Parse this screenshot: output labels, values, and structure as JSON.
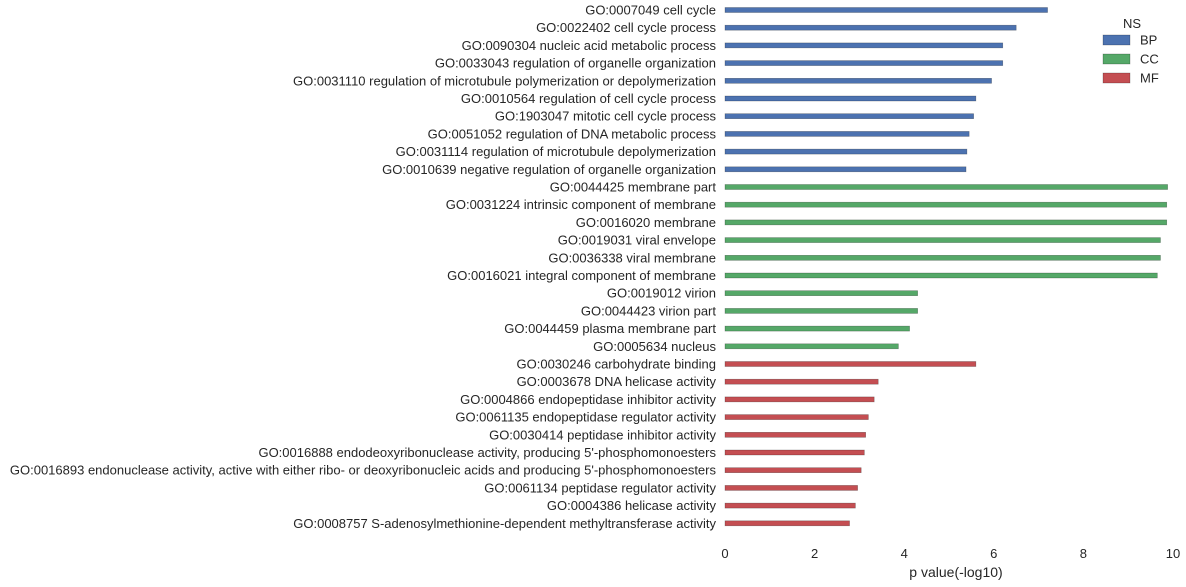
{
  "chart_data": {
    "type": "bar",
    "orientation": "horizontal",
    "xlabel": "p value(-log10)",
    "ylabel": "",
    "xlim": [
      0,
      10
    ],
    "xticks": [
      "0",
      "2",
      "4",
      "6",
      "8",
      "10"
    ],
    "grid": false,
    "legend": {
      "title": "NS",
      "placement": "top-right",
      "entries": [
        {
          "name": "BP",
          "color": "#4c72b0"
        },
        {
          "name": "CC",
          "color": "#55a868"
        },
        {
          "name": "MF",
          "color": "#c44e52"
        }
      ]
    },
    "bars": [
      {
        "label": "GO:0007049 cell cycle",
        "value": 7.2,
        "ns": "BP"
      },
      {
        "label": "GO:0022402 cell cycle process",
        "value": 6.5,
        "ns": "BP"
      },
      {
        "label": "GO:0090304 nucleic acid metabolic process",
        "value": 6.2,
        "ns": "BP"
      },
      {
        "label": "GO:0033043 regulation of organelle organization",
        "value": 6.2,
        "ns": "BP"
      },
      {
        "label": "GO:0031110 regulation of microtubule polymerization or depolymerization",
        "value": 5.95,
        "ns": "BP"
      },
      {
        "label": "GO:0010564 regulation of cell cycle process",
        "value": 5.6,
        "ns": "BP"
      },
      {
        "label": "GO:1903047 mitotic cell cycle process",
        "value": 5.55,
        "ns": "BP"
      },
      {
        "label": "GO:0051052 regulation of DNA metabolic process",
        "value": 5.45,
        "ns": "BP"
      },
      {
        "label": "GO:0031114 regulation of microtubule depolymerization",
        "value": 5.4,
        "ns": "BP"
      },
      {
        "label": "GO:0010639 negative regulation of organelle organization",
        "value": 5.38,
        "ns": "BP"
      },
      {
        "label": "GO:0044425 membrane part",
        "value": 9.88,
        "ns": "CC"
      },
      {
        "label": "GO:0031224 intrinsic component of membrane",
        "value": 9.86,
        "ns": "CC"
      },
      {
        "label": "GO:0016020 membrane",
        "value": 9.86,
        "ns": "CC"
      },
      {
        "label": "GO:0019031 viral envelope",
        "value": 9.72,
        "ns": "CC"
      },
      {
        "label": "GO:0036338 viral membrane",
        "value": 9.72,
        "ns": "CC"
      },
      {
        "label": "GO:0016021 integral component of membrane",
        "value": 9.65,
        "ns": "CC"
      },
      {
        "label": "GO:0019012 virion",
        "value": 4.3,
        "ns": "CC"
      },
      {
        "label": "GO:0044423 virion part",
        "value": 4.3,
        "ns": "CC"
      },
      {
        "label": "GO:0044459 plasma membrane part",
        "value": 4.12,
        "ns": "CC"
      },
      {
        "label": "GO:0005634 nucleus",
        "value": 3.87,
        "ns": "CC"
      },
      {
        "label": "GO:0030246 carbohydrate binding",
        "value": 5.6,
        "ns": "MF"
      },
      {
        "label": "GO:0003678 DNA helicase activity",
        "value": 3.42,
        "ns": "MF"
      },
      {
        "label": "GO:0004866 endopeptidase inhibitor activity",
        "value": 3.33,
        "ns": "MF"
      },
      {
        "label": "GO:0061135 endopeptidase regulator activity",
        "value": 3.2,
        "ns": "MF"
      },
      {
        "label": "GO:0030414 peptidase inhibitor activity",
        "value": 3.14,
        "ns": "MF"
      },
      {
        "label": "GO:0016888 endodeoxyribonuclease activity, producing 5'-phosphomonoesters",
        "value": 3.11,
        "ns": "MF"
      },
      {
        "label": "GO:0016893 endonuclease activity, active with either ribo- or deoxyribonucleic acids and producing 5'-phosphomonoesters",
        "value": 3.04,
        "ns": "MF"
      },
      {
        "label": "GO:0061134 peptidase regulator activity",
        "value": 2.96,
        "ns": "MF"
      },
      {
        "label": "GO:0004386 helicase activity",
        "value": 2.91,
        "ns": "MF"
      },
      {
        "label": "GO:0008757 S-adenosylmethionine-dependent methyltransferase activity",
        "value": 2.78,
        "ns": "MF"
      }
    ]
  }
}
